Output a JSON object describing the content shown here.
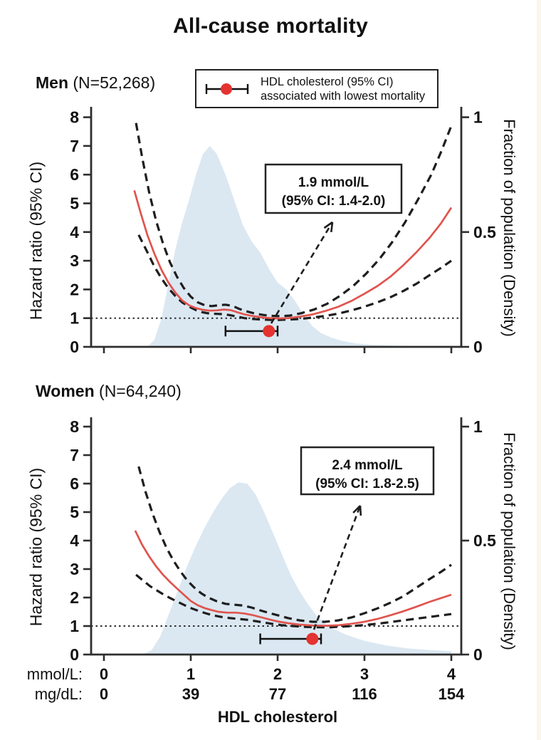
{
  "figure": {
    "title": "All-cause mortality"
  },
  "legend": {
    "line1": "HDL cholesterol (95% CI)",
    "line2": "associated with lowest mortality",
    "icon": "errorbar-with-dot-icon"
  },
  "bottom": {
    "xlabel": "HDL cholesterol",
    "unit_rows": [
      {
        "label": "mmol/L:",
        "values": [
          "0",
          "1",
          "2",
          "3",
          "4"
        ]
      },
      {
        "label": "mg/dL:",
        "values": [
          "0",
          "39",
          "77",
          "116",
          "154"
        ]
      }
    ]
  },
  "colors": {
    "red_line": "#e0544e",
    "red_dot": "#e43330",
    "density_fill": "#dbe8f2",
    "dash": "#1e1e1e",
    "axis": "#2e2e2e",
    "text": "#111111",
    "box_border": "#222222"
  },
  "chart_data": [
    {
      "id": "men",
      "type": "line",
      "title_bold": "Men",
      "title_n": "(N=52,268)",
      "ylabel": "Hazard ratio (95% CI)",
      "y2label": "Fraction of population (Density)",
      "xlabel_shared": "HDL cholesterol",
      "xlim": [
        0,
        4
      ],
      "ylim": [
        0,
        8
      ],
      "y2lim": [
        0,
        1
      ],
      "xticks": [
        0,
        1,
        2,
        3,
        4
      ],
      "yticks": [
        0,
        1,
        2,
        3,
        4,
        5,
        6,
        7,
        8
      ],
      "y2ticks": [
        {
          "v": 0,
          "label": "0"
        },
        {
          "v": 0.5,
          "label": "0.5"
        },
        {
          "v": 1,
          "label": "1"
        }
      ],
      "reference_line_hr": 1,
      "grid": false,
      "series": {
        "hazard_ratio": [
          [
            0.35,
            5.45
          ],
          [
            0.42,
            4.7
          ],
          [
            0.5,
            3.9
          ],
          [
            0.58,
            3.25
          ],
          [
            0.66,
            2.7
          ],
          [
            0.74,
            2.25
          ],
          [
            0.82,
            1.9
          ],
          [
            0.9,
            1.62
          ],
          [
            0.98,
            1.45
          ],
          [
            1.06,
            1.35
          ],
          [
            1.14,
            1.29
          ],
          [
            1.22,
            1.26
          ],
          [
            1.3,
            1.27
          ],
          [
            1.38,
            1.3
          ],
          [
            1.46,
            1.28
          ],
          [
            1.54,
            1.2
          ],
          [
            1.62,
            1.13
          ],
          [
            1.72,
            1.07
          ],
          [
            1.82,
            1.03
          ],
          [
            1.92,
            1.0
          ],
          [
            2.02,
            0.99
          ],
          [
            2.12,
            1.0
          ],
          [
            2.25,
            1.05
          ],
          [
            2.4,
            1.13
          ],
          [
            2.55,
            1.25
          ],
          [
            2.7,
            1.4
          ],
          [
            2.85,
            1.6
          ],
          [
            3.0,
            1.85
          ],
          [
            3.15,
            2.12
          ],
          [
            3.3,
            2.45
          ],
          [
            3.45,
            2.85
          ],
          [
            3.6,
            3.3
          ],
          [
            3.75,
            3.8
          ],
          [
            3.88,
            4.3
          ],
          [
            4.0,
            4.85
          ]
        ],
        "ci_upper": [
          [
            0.37,
            7.8
          ],
          [
            0.44,
            6.6
          ],
          [
            0.52,
            5.4
          ],
          [
            0.6,
            4.4
          ],
          [
            0.68,
            3.6
          ],
          [
            0.76,
            2.95
          ],
          [
            0.84,
            2.45
          ],
          [
            0.92,
            2.05
          ],
          [
            1.0,
            1.75
          ],
          [
            1.08,
            1.55
          ],
          [
            1.16,
            1.45
          ],
          [
            1.24,
            1.42
          ],
          [
            1.32,
            1.45
          ],
          [
            1.4,
            1.47
          ],
          [
            1.48,
            1.43
          ],
          [
            1.56,
            1.32
          ],
          [
            1.64,
            1.24
          ],
          [
            1.74,
            1.16
          ],
          [
            1.84,
            1.11
          ],
          [
            1.94,
            1.08
          ],
          [
            2.04,
            1.07
          ],
          [
            2.14,
            1.09
          ],
          [
            2.27,
            1.17
          ],
          [
            2.42,
            1.3
          ],
          [
            2.57,
            1.5
          ],
          [
            2.72,
            1.78
          ],
          [
            2.87,
            2.12
          ],
          [
            3.02,
            2.55
          ],
          [
            3.17,
            3.05
          ],
          [
            3.32,
            3.65
          ],
          [
            3.47,
            4.35
          ],
          [
            3.62,
            5.15
          ],
          [
            3.77,
            6.0
          ],
          [
            3.89,
            6.85
          ],
          [
            4.0,
            7.7
          ]
        ],
        "ci_lower": [
          [
            0.4,
            3.9
          ],
          [
            0.5,
            3.3
          ],
          [
            0.58,
            2.8
          ],
          [
            0.66,
            2.4
          ],
          [
            0.74,
            2.05
          ],
          [
            0.82,
            1.78
          ],
          [
            0.9,
            1.55
          ],
          [
            0.98,
            1.4
          ],
          [
            1.06,
            1.28
          ],
          [
            1.14,
            1.2
          ],
          [
            1.22,
            1.16
          ],
          [
            1.3,
            1.15
          ],
          [
            1.38,
            1.14
          ],
          [
            1.46,
            1.1
          ],
          [
            1.54,
            1.05
          ],
          [
            1.62,
            1.0
          ],
          [
            1.72,
            0.97
          ],
          [
            1.82,
            0.95
          ],
          [
            1.92,
            0.94
          ],
          [
            2.02,
            0.94
          ],
          [
            2.12,
            0.95
          ],
          [
            2.25,
            0.97
          ],
          [
            2.4,
            1.02
          ],
          [
            2.55,
            1.08
          ],
          [
            2.7,
            1.16
          ],
          [
            2.85,
            1.27
          ],
          [
            3.0,
            1.4
          ],
          [
            3.15,
            1.55
          ],
          [
            3.3,
            1.73
          ],
          [
            3.45,
            1.95
          ],
          [
            3.6,
            2.2
          ],
          [
            3.75,
            2.5
          ],
          [
            3.88,
            2.75
          ],
          [
            4.0,
            3.0
          ]
        ],
        "density": [
          [
            0.5,
            0
          ],
          [
            0.58,
            0.03
          ],
          [
            0.66,
            0.12
          ],
          [
            0.74,
            0.27
          ],
          [
            0.82,
            0.42
          ],
          [
            0.9,
            0.54
          ],
          [
            0.98,
            0.64
          ],
          [
            1.06,
            0.75
          ],
          [
            1.14,
            0.84
          ],
          [
            1.22,
            0.875
          ],
          [
            1.3,
            0.84
          ],
          [
            1.4,
            0.75
          ],
          [
            1.5,
            0.64
          ],
          [
            1.6,
            0.53
          ],
          [
            1.7,
            0.46
          ],
          [
            1.8,
            0.41
          ],
          [
            1.9,
            0.34
          ],
          [
            2.0,
            0.28
          ],
          [
            2.1,
            0.25
          ],
          [
            2.2,
            0.2
          ],
          [
            2.3,
            0.14
          ],
          [
            2.4,
            0.09
          ],
          [
            2.5,
            0.06
          ],
          [
            2.62,
            0.04
          ],
          [
            2.75,
            0.025
          ],
          [
            2.9,
            0.015
          ],
          [
            3.1,
            0.009
          ],
          [
            3.35,
            0.005
          ],
          [
            3.6,
            0.003
          ],
          [
            3.98,
            0.001
          ]
        ]
      },
      "optimum": {
        "x": 1.9,
        "ci": [
          1.4,
          2.0
        ],
        "marker_hr_y": 0.55,
        "label_line1": "1.9 mmol/L",
        "label_line2": "(95% CI: 1.4-2.0)"
      }
    },
    {
      "id": "women",
      "type": "line",
      "title_bold": "Women",
      "title_n": "(N=64,240)",
      "ylabel": "Hazard ratio (95% CI)",
      "y2label": "Fraction of population (Density)",
      "xlabel_shared": "HDL cholesterol",
      "xlim": [
        0,
        4
      ],
      "ylim": [
        0,
        8
      ],
      "y2lim": [
        0,
        1
      ],
      "xticks": [
        0,
        1,
        2,
        3,
        4
      ],
      "yticks": [
        0,
        1,
        2,
        3,
        4,
        5,
        6,
        7,
        8
      ],
      "y2ticks": [
        {
          "v": 0,
          "label": "0"
        },
        {
          "v": 0.5,
          "label": "0.5"
        },
        {
          "v": 1,
          "label": "1"
        }
      ],
      "reference_line_hr": 1,
      "grid": false,
      "series": {
        "hazard_ratio": [
          [
            0.36,
            4.35
          ],
          [
            0.44,
            3.85
          ],
          [
            0.52,
            3.45
          ],
          [
            0.6,
            3.1
          ],
          [
            0.68,
            2.8
          ],
          [
            0.76,
            2.55
          ],
          [
            0.84,
            2.32
          ],
          [
            0.92,
            2.1
          ],
          [
            1.0,
            1.88
          ],
          [
            1.08,
            1.73
          ],
          [
            1.16,
            1.63
          ],
          [
            1.24,
            1.56
          ],
          [
            1.32,
            1.5
          ],
          [
            1.42,
            1.47
          ],
          [
            1.52,
            1.47
          ],
          [
            1.62,
            1.44
          ],
          [
            1.72,
            1.38
          ],
          [
            1.82,
            1.3
          ],
          [
            1.92,
            1.22
          ],
          [
            2.02,
            1.15
          ],
          [
            2.12,
            1.1
          ],
          [
            2.25,
            1.05
          ],
          [
            2.4,
            1.02
          ],
          [
            2.55,
            1.01
          ],
          [
            2.7,
            1.03
          ],
          [
            2.85,
            1.08
          ],
          [
            3.0,
            1.15
          ],
          [
            3.15,
            1.25
          ],
          [
            3.3,
            1.38
          ],
          [
            3.45,
            1.52
          ],
          [
            3.6,
            1.68
          ],
          [
            3.75,
            1.85
          ],
          [
            3.88,
            1.98
          ],
          [
            4.0,
            2.1
          ]
        ],
        "ci_upper": [
          [
            0.4,
            6.6
          ],
          [
            0.48,
            5.7
          ],
          [
            0.56,
            4.95
          ],
          [
            0.64,
            4.3
          ],
          [
            0.72,
            3.75
          ],
          [
            0.8,
            3.3
          ],
          [
            0.88,
            2.92
          ],
          [
            0.96,
            2.6
          ],
          [
            1.04,
            2.35
          ],
          [
            1.12,
            2.15
          ],
          [
            1.2,
            2.0
          ],
          [
            1.3,
            1.87
          ],
          [
            1.4,
            1.78
          ],
          [
            1.5,
            1.75
          ],
          [
            1.6,
            1.72
          ],
          [
            1.7,
            1.65
          ],
          [
            1.8,
            1.55
          ],
          [
            1.9,
            1.46
          ],
          [
            2.0,
            1.38
          ],
          [
            2.12,
            1.28
          ],
          [
            2.25,
            1.2
          ],
          [
            2.4,
            1.15
          ],
          [
            2.55,
            1.15
          ],
          [
            2.7,
            1.2
          ],
          [
            2.85,
            1.3
          ],
          [
            3.0,
            1.45
          ],
          [
            3.15,
            1.62
          ],
          [
            3.3,
            1.82
          ],
          [
            3.45,
            2.05
          ],
          [
            3.6,
            2.35
          ],
          [
            3.75,
            2.65
          ],
          [
            3.88,
            2.9
          ],
          [
            4.0,
            3.15
          ]
        ],
        "ci_lower": [
          [
            0.37,
            2.8
          ],
          [
            0.45,
            2.6
          ],
          [
            0.53,
            2.4
          ],
          [
            0.61,
            2.25
          ],
          [
            0.69,
            2.1
          ],
          [
            0.77,
            1.97
          ],
          [
            0.85,
            1.85
          ],
          [
            0.93,
            1.73
          ],
          [
            1.01,
            1.62
          ],
          [
            1.09,
            1.53
          ],
          [
            1.17,
            1.45
          ],
          [
            1.25,
            1.38
          ],
          [
            1.35,
            1.32
          ],
          [
            1.45,
            1.28
          ],
          [
            1.55,
            1.25
          ],
          [
            1.65,
            1.22
          ],
          [
            1.75,
            1.17
          ],
          [
            1.85,
            1.12
          ],
          [
            1.95,
            1.07
          ],
          [
            2.05,
            1.03
          ],
          [
            2.18,
            1.0
          ],
          [
            2.32,
            0.97
          ],
          [
            2.46,
            0.96
          ],
          [
            2.6,
            0.96
          ],
          [
            2.75,
            0.98
          ],
          [
            2.9,
            1.01
          ],
          [
            3.05,
            1.05
          ],
          [
            3.2,
            1.1
          ],
          [
            3.35,
            1.16
          ],
          [
            3.5,
            1.22
          ],
          [
            3.65,
            1.28
          ],
          [
            3.8,
            1.34
          ],
          [
            4.0,
            1.42
          ]
        ],
        "density": [
          [
            0.45,
            0
          ],
          [
            0.55,
            0.02
          ],
          [
            0.65,
            0.08
          ],
          [
            0.75,
            0.18
          ],
          [
            0.85,
            0.28
          ],
          [
            0.95,
            0.38
          ],
          [
            1.05,
            0.47
          ],
          [
            1.15,
            0.55
          ],
          [
            1.25,
            0.62
          ],
          [
            1.35,
            0.68
          ],
          [
            1.45,
            0.73
          ],
          [
            1.55,
            0.755
          ],
          [
            1.65,
            0.75
          ],
          [
            1.75,
            0.7
          ],
          [
            1.85,
            0.62
          ],
          [
            1.95,
            0.53
          ],
          [
            2.05,
            0.44
          ],
          [
            2.15,
            0.35
          ],
          [
            2.25,
            0.28
          ],
          [
            2.35,
            0.22
          ],
          [
            2.45,
            0.17
          ],
          [
            2.6,
            0.12
          ],
          [
            2.8,
            0.085
          ],
          [
            3.0,
            0.06
          ],
          [
            3.25,
            0.04
          ],
          [
            3.5,
            0.027
          ],
          [
            3.75,
            0.02
          ],
          [
            4.0,
            0.015
          ]
        ]
      },
      "optimum": {
        "x": 2.4,
        "ci": [
          1.8,
          2.5
        ],
        "marker_hr_y": 0.55,
        "label_line1": "2.4 mmol/L",
        "label_line2": "(95% CI: 1.8-2.5)"
      }
    }
  ]
}
